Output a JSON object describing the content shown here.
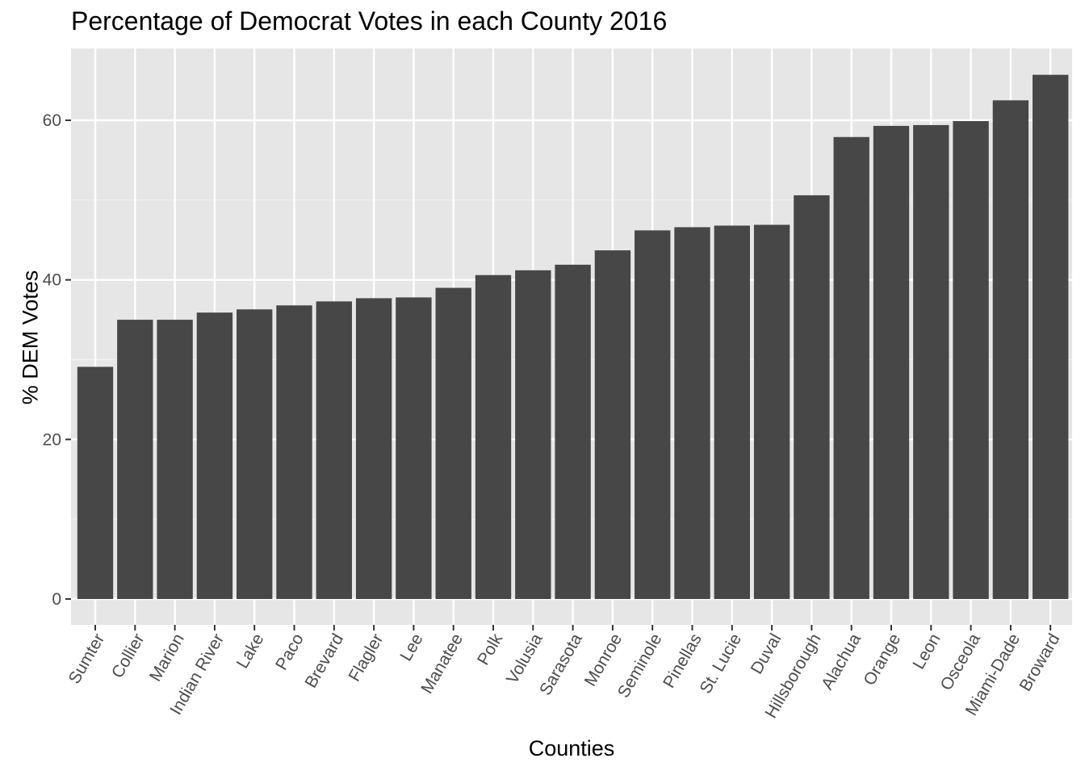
{
  "chart_data": {
    "type": "bar",
    "title": "Percentage of Democrat Votes in each County 2016",
    "xlabel": "Counties",
    "ylabel": "% DEM Votes",
    "categories": [
      "Sumter",
      "Collier",
      "Marion",
      "Indian River",
      "Lake",
      "Paco",
      "Brevard",
      "Flagler",
      "Lee",
      "Manatee",
      "Polk",
      "Volusia",
      "Sarasota",
      "Monroe",
      "Seminole",
      "Pinellas",
      "St. Lucie",
      "Duval",
      "Hillsborough",
      "Alachua",
      "Orange",
      "Leon",
      "Osceola",
      "Miami-Dade",
      "Broward"
    ],
    "values": [
      29.1,
      35.0,
      35.0,
      35.9,
      36.3,
      36.8,
      37.3,
      37.7,
      37.8,
      39.0,
      40.6,
      41.2,
      41.9,
      43.7,
      46.2,
      46.6,
      46.8,
      46.9,
      50.6,
      57.9,
      59.3,
      59.4,
      59.9,
      62.5,
      65.7
    ],
    "ylim": [
      0,
      69
    ],
    "yticks": [
      0,
      20,
      40,
      60
    ],
    "ytick_labels": [
      "0",
      "20",
      "40",
      "60"
    ],
    "grid": true,
    "legend": "none",
    "colors": {
      "bar": "#474747",
      "panel": "#e6e6e6",
      "grid_major": "#ffffff",
      "tick_text": "#4d4d4d"
    }
  }
}
